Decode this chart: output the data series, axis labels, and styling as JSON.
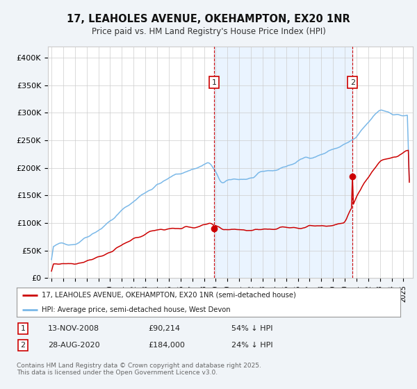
{
  "title": "17, LEAHOLES AVENUE, OKEHAMPTON, EX20 1NR",
  "subtitle": "Price paid vs. HM Land Registry's House Price Index (HPI)",
  "legend_line1": "17, LEAHOLES AVENUE, OKEHAMPTON, EX20 1NR (semi-detached house)",
  "legend_line2": "HPI: Average price, semi-detached house, West Devon",
  "footer": "Contains HM Land Registry data © Crown copyright and database right 2025.\nThis data is licensed under the Open Government Licence v3.0.",
  "annotation1": {
    "label": "1",
    "date": "13-NOV-2008",
    "price": "£90,214",
    "pct": "54% ↓ HPI",
    "x_year": 2008.87
  },
  "annotation2": {
    "label": "2",
    "date": "28-AUG-2020",
    "price": "£184,000",
    "pct": "24% ↓ HPI",
    "x_year": 2020.66
  },
  "sale1_price": 90214,
  "sale2_price": 184000,
  "hpi_color": "#7ab8e8",
  "price_color": "#cc0000",
  "shade_color": "#ddeeff",
  "background_color": "#f0f4f8",
  "plot_bg_color": "#ffffff",
  "ylim": [
    0,
    420000
  ],
  "yticks": [
    0,
    50000,
    100000,
    150000,
    200000,
    250000,
    300000,
    350000,
    400000
  ],
  "ytick_labels": [
    "£0",
    "£50K",
    "£100K",
    "£150K",
    "£200K",
    "£250K",
    "£300K",
    "£350K",
    "£400K"
  ],
  "xlim_start": 1995,
  "xlim_end": 2025.5
}
